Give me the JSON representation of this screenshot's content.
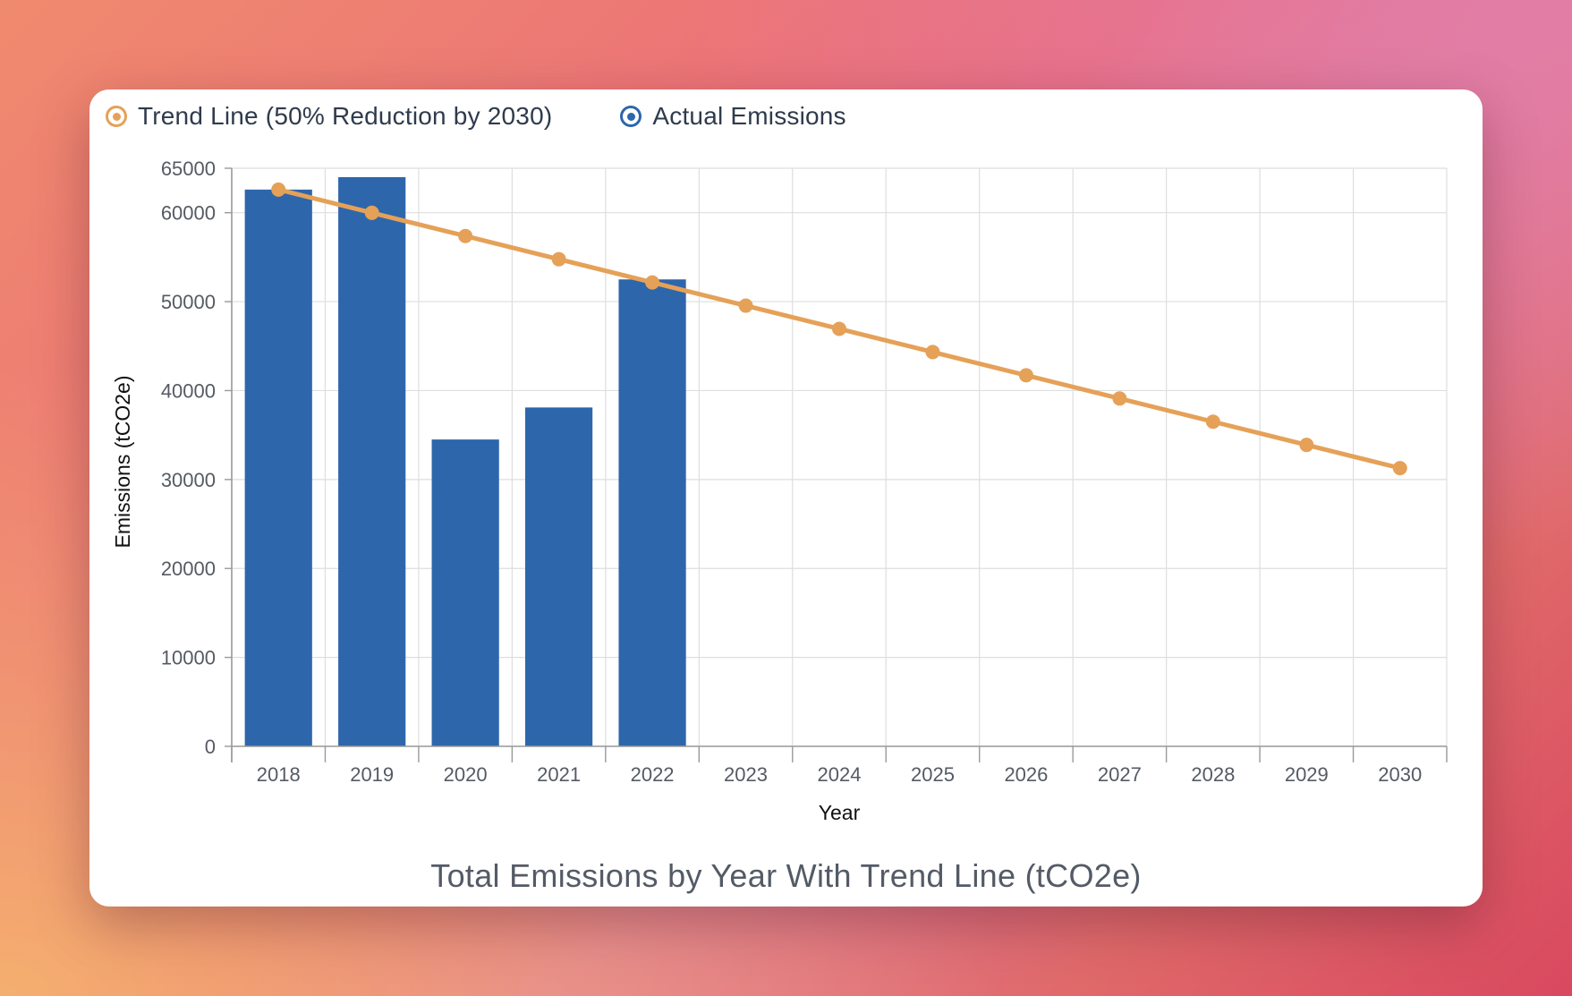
{
  "colors": {
    "trend": "#e5a158",
    "actual": "#2e66ab",
    "grid": "#dedede",
    "axis": "#9a9a9a"
  },
  "legend": {
    "trend_label": "Trend Line (50% Reduction by 2030)",
    "actual_label": "Actual Emissions"
  },
  "chart_data": {
    "type": "bar",
    "title": "Total Emissions by Year With Trend Line (tCO2e)",
    "xlabel": "Year",
    "ylabel": "Emissions (tCO2e)",
    "ylim": [
      0,
      65000
    ],
    "yticks": [
      0,
      10000,
      20000,
      30000,
      40000,
      50000,
      60000,
      65000
    ],
    "grid": true,
    "legend_position": "top-left",
    "categories": [
      "2018",
      "2019",
      "2020",
      "2021",
      "2022",
      "2023",
      "2024",
      "2025",
      "2026",
      "2027",
      "2028",
      "2029",
      "2030"
    ],
    "series": [
      {
        "name": "Actual Emissions",
        "type": "bar",
        "values": [
          62600,
          64000,
          34500,
          38100,
          52500,
          null,
          null,
          null,
          null,
          null,
          null,
          null,
          null
        ]
      },
      {
        "name": "Trend Line (50% Reduction by 2030)",
        "type": "line",
        "values": [
          62600,
          59990,
          57380,
          54770,
          52160,
          49550,
          46940,
          44330,
          41720,
          39110,
          36500,
          33890,
          31280
        ]
      }
    ]
  }
}
